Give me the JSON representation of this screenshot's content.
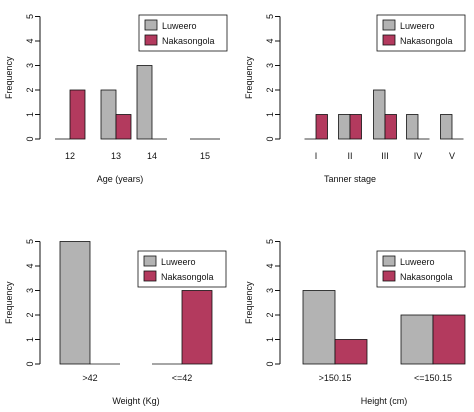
{
  "colors": {
    "Luweero": "#b3b3b3",
    "Nakasongola": "#b33a5e",
    "axis": "#111111"
  },
  "chart_data": [
    {
      "type": "bar",
      "xlabel": "Age (years)",
      "ylabel": "Frequency",
      "ylim": [
        0,
        5
      ],
      "yticks": [
        "0",
        "1",
        "2",
        "3",
        "4",
        "5"
      ],
      "categories": [
        "12",
        "13",
        "14",
        "15"
      ],
      "series": [
        {
          "name": "Luweero",
          "values": [
            0,
            2,
            3,
            0
          ]
        },
        {
          "name": "Nakasongola",
          "values": [
            2,
            1,
            0,
            0
          ]
        }
      ],
      "legend": "top-right"
    },
    {
      "type": "bar",
      "xlabel": "Tanner stage",
      "ylabel": "Frequency",
      "ylim": [
        0,
        5
      ],
      "yticks": [
        "0",
        "1",
        "2",
        "3",
        "4",
        "5"
      ],
      "categories": [
        "I",
        "II",
        "III",
        "IV",
        "V"
      ],
      "series": [
        {
          "name": "Luweero",
          "values": [
            0,
            1,
            2,
            1,
            1
          ]
        },
        {
          "name": "Nakasongola",
          "values": [
            1,
            1,
            1,
            0,
            0
          ]
        }
      ],
      "legend": "top-right"
    },
    {
      "type": "bar",
      "xlabel": "Weight (Kg)",
      "ylabel": "Frequency",
      "ylim": [
        0,
        5
      ],
      "yticks": [
        "0",
        "1",
        "2",
        "3",
        "4",
        "5"
      ],
      "categories": [
        ">42",
        "<=42"
      ],
      "series": [
        {
          "name": "Luweero",
          "values": [
            5,
            0
          ]
        },
        {
          "name": "Nakasongola",
          "values": [
            0,
            3
          ]
        }
      ],
      "legend": "top-right"
    },
    {
      "type": "bar",
      "xlabel": "Height (cm)",
      "ylabel": "Frequency",
      "ylim": [
        0,
        5
      ],
      "yticks": [
        "0",
        "1",
        "2",
        "3",
        "4",
        "5"
      ],
      "categories": [
        ">150.15",
        "<=150.15"
      ],
      "series": [
        {
          "name": "Luweero",
          "values": [
            3,
            2
          ]
        },
        {
          "name": "Nakasongola",
          "values": [
            1,
            2
          ]
        }
      ],
      "legend": "top-right"
    }
  ]
}
